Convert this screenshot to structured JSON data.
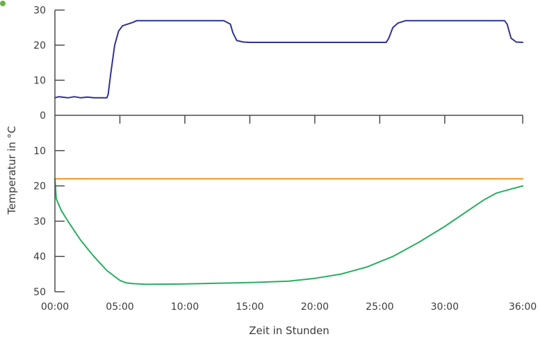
{
  "chart_data": {
    "type": "line",
    "ylabel": "Temperatur in °C",
    "xlabel": "Zeit in Stunden",
    "xlim": [
      0,
      36
    ],
    "x_tick_labels": [
      "00:00",
      "05:00",
      "10:00",
      "15:00",
      "20:00",
      "25:00",
      "30:00",
      "36:00"
    ],
    "x_tick_values": [
      0,
      5,
      10,
      15,
      20,
      25,
      30,
      36
    ],
    "upper_panel": {
      "ylim": [
        0,
        30
      ],
      "y_tick_labels": [
        "0",
        "10",
        "20",
        "30"
      ],
      "y_tick_values": [
        0,
        10,
        20,
        30
      ],
      "series": [
        {
          "color": "#2e3192",
          "x": [
            0,
            0.3,
            1,
            1.5,
            2,
            2.5,
            3,
            3.5,
            4,
            4.1,
            4.3,
            4.6,
            4.9,
            5.2,
            5.6,
            6.0,
            6.3,
            7,
            10,
            13,
            13.5,
            13.7,
            14.0,
            14.5,
            15,
            20,
            25.5,
            25.7,
            26.0,
            26.4,
            27,
            30,
            34,
            34.6,
            34.8,
            35.1,
            35.5,
            36
          ],
          "y": [
            5,
            5.3,
            5,
            5.3,
            5,
            5.2,
            5,
            5,
            5,
            6,
            12,
            20,
            24,
            25.5,
            26,
            26.5,
            27,
            27,
            27,
            27,
            26,
            23.5,
            21.3,
            20.9,
            20.8,
            20.8,
            20.8,
            22,
            25,
            26.3,
            27,
            27,
            27,
            27,
            26,
            22,
            20.9,
            20.8
          ]
        }
      ]
    },
    "lower_panel": {
      "ylim": [
        50,
        0
      ],
      "y_tick_labels": [
        "10",
        "20",
        "30",
        "40",
        "50"
      ],
      "y_tick_values": [
        10,
        20,
        30,
        40,
        50
      ],
      "series": [
        {
          "color": "#f7941d",
          "x": [
            0,
            36
          ],
          "y": [
            18,
            18
          ]
        },
        {
          "color": "#27ae60",
          "x": [
            0,
            0.1,
            0.2,
            0.5,
            1,
            2,
            3,
            4,
            5,
            5.5,
            6,
            7,
            10,
            15,
            18,
            20,
            22,
            24,
            26,
            28,
            30,
            32,
            33,
            34,
            35,
            36
          ],
          "y": [
            18,
            23.5,
            24.5,
            27,
            30,
            35.5,
            40,
            44,
            46.8,
            47.5,
            47.7,
            47.9,
            47.8,
            47.4,
            47,
            46.2,
            45,
            43,
            40,
            36,
            31.5,
            26.5,
            24,
            22,
            21,
            20
          ]
        }
      ]
    }
  }
}
